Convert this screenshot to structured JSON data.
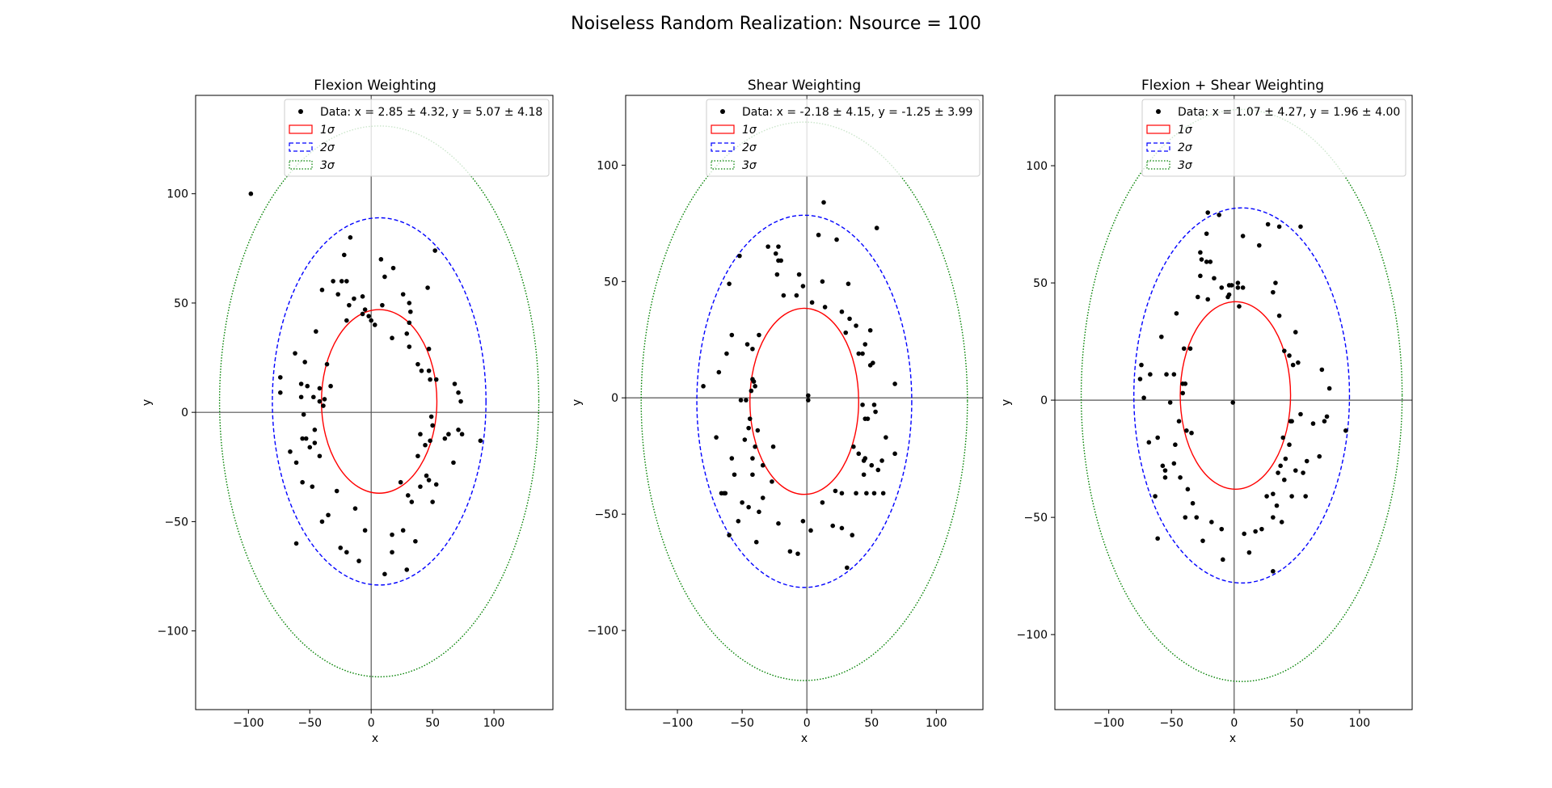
{
  "figure": {
    "title": "Noiseless Random Realization: Nsource = 100"
  },
  "chart_data": [
    {
      "type": "scatter",
      "title": "Flexion Weighting",
      "xlabel": "x",
      "ylabel": "y",
      "xlim": [
        -143,
        148
      ],
      "ylim": [
        -136,
        145
      ],
      "xticks": [
        -100,
        -50,
        0,
        50,
        100
      ],
      "yticks": [
        -100,
        -50,
        0,
        50,
        100
      ],
      "tick_labels_x": [
        "−100",
        "−50",
        "0",
        "50",
        "100"
      ],
      "tick_labels_y": [
        "−100",
        "−50",
        "0",
        "50",
        "100"
      ],
      "legend_position": "upper-right",
      "legend": {
        "data": "Data: x = 2.85 ± 4.32, y = 5.07 ± 4.18",
        "s1": "1σ",
        "s2": "2σ",
        "s3": "3σ"
      },
      "colors": {
        "points": "#000000",
        "s1": "#ff0000",
        "s2": "#0000ff",
        "s3": "#008000"
      },
      "ellipses": [
        {
          "level": 1,
          "cx": 6.5,
          "cy": 5,
          "rx": 47,
          "ry": 42
        },
        {
          "level": 2,
          "cx": 6.5,
          "cy": 5,
          "rx": 87,
          "ry": 84
        },
        {
          "level": 3,
          "cx": 6.5,
          "cy": 5,
          "rx": 130,
          "ry": 126
        }
      ],
      "points": [
        [
          -98,
          100
        ],
        [
          -17,
          80
        ],
        [
          -22,
          72
        ],
        [
          -20,
          60
        ],
        [
          -24,
          60
        ],
        [
          -31,
          60
        ],
        [
          -40,
          56
        ],
        [
          -14,
          52
        ],
        [
          -7,
          53
        ],
        [
          -5,
          47
        ],
        [
          -2,
          44
        ],
        [
          0,
          42
        ],
        [
          -18,
          49
        ],
        [
          -27,
          54
        ],
        [
          -20,
          42
        ],
        [
          -7,
          45
        ],
        [
          3,
          40
        ],
        [
          8,
          70
        ],
        [
          11,
          62
        ],
        [
          18,
          66
        ],
        [
          9,
          49
        ],
        [
          17,
          34
        ],
        [
          26,
          54
        ],
        [
          29,
          36
        ],
        [
          31,
          41
        ],
        [
          31,
          50
        ],
        [
          32,
          46
        ],
        [
          31,
          30
        ],
        [
          46,
          57
        ],
        [
          52,
          74
        ],
        [
          47,
          29
        ],
        [
          48,
          15
        ],
        [
          53,
          15
        ],
        [
          47,
          19
        ],
        [
          41,
          19
        ],
        [
          38,
          22
        ],
        [
          -36,
          22
        ],
        [
          -33,
          12
        ],
        [
          -38,
          6
        ],
        [
          -39,
          3
        ],
        [
          -42,
          5
        ],
        [
          -42,
          11
        ],
        [
          -47,
          7
        ],
        [
          -52,
          12
        ],
        [
          -54,
          23
        ],
        [
          -57,
          13
        ],
        [
          -57,
          7
        ],
        [
          -62,
          27
        ],
        [
          -74,
          16
        ],
        [
          -74,
          9
        ],
        [
          -45,
          37
        ],
        [
          -46,
          -8
        ],
        [
          -46,
          -14
        ],
        [
          -42,
          -20
        ],
        [
          -55,
          -1
        ],
        [
          -53,
          -12
        ],
        [
          -50,
          -16
        ],
        [
          -61,
          -23
        ],
        [
          -66,
          -18
        ],
        [
          -56,
          -32
        ],
        [
          -48,
          -34
        ],
        [
          -40,
          -50
        ],
        [
          -35,
          -47
        ],
        [
          -28,
          -36
        ],
        [
          -61,
          -60
        ],
        [
          -25,
          -62
        ],
        [
          -20,
          -64
        ],
        [
          -13,
          -44
        ],
        [
          -10,
          -68
        ],
        [
          -5,
          -54
        ],
        [
          11,
          -74
        ],
        [
          17,
          -56
        ],
        [
          17,
          -64
        ],
        [
          26,
          -54
        ],
        [
          29,
          -72
        ],
        [
          30,
          -38
        ],
        [
          33,
          -41
        ],
        [
          36,
          -59
        ],
        [
          38,
          -20
        ],
        [
          40,
          -34
        ],
        [
          40,
          -10
        ],
        [
          44,
          -15
        ],
        [
          49,
          -2
        ],
        [
          48,
          -13
        ],
        [
          45,
          -29
        ],
        [
          47,
          -31
        ],
        [
          50,
          -41
        ],
        [
          53,
          -33
        ],
        [
          67,
          -23
        ],
        [
          63,
          -10
        ],
        [
          60,
          -12
        ],
        [
          74,
          -10
        ],
        [
          71,
          -8
        ],
        [
          89,
          -13
        ],
        [
          68,
          13
        ],
        [
          71,
          9
        ],
        [
          73,
          5
        ],
        [
          50,
          -6
        ],
        [
          24,
          -32
        ],
        [
          -56,
          -12
        ]
      ]
    },
    {
      "type": "scatter",
      "title": "Shear Weighting",
      "xlabel": "x",
      "ylabel": "y",
      "xlim": [
        -140,
        136
      ],
      "ylim": [
        -134,
        130
      ],
      "xticks": [
        -100,
        -50,
        0,
        50,
        100
      ],
      "yticks": [
        -100,
        -50,
        0,
        50,
        100
      ],
      "tick_labels_x": [
        "−100",
        "−50",
        "0",
        "50",
        "100"
      ],
      "tick_labels_y": [
        "−100",
        "−50",
        "0",
        "50",
        "100"
      ],
      "legend_position": "upper-right",
      "legend": {
        "data": "Data: x = -2.18 ± 4.15, y = -1.25 ± 3.99",
        "s1": "1σ",
        "s2": "2σ",
        "s3": "3σ"
      },
      "colors": {
        "points": "#000000",
        "s1": "#ff0000",
        "s2": "#0000ff",
        "s3": "#008000"
      },
      "ellipses": [
        {
          "level": 1,
          "cx": -2,
          "cy": -1.5,
          "rx": 42,
          "ry": 40
        },
        {
          "level": 2,
          "cx": -2,
          "cy": -1.5,
          "rx": 83,
          "ry": 80
        },
        {
          "level": 3,
          "cx": -2,
          "cy": -1.5,
          "rx": 126,
          "ry": 120
        }
      ],
      "points": [
        [
          -52,
          61
        ],
        [
          -30,
          65
        ],
        [
          -22,
          65
        ],
        [
          -24,
          62
        ],
        [
          -22,
          59
        ],
        [
          -20,
          59
        ],
        [
          -23,
          53
        ],
        [
          -6,
          53
        ],
        [
          -18,
          44
        ],
        [
          13,
          84
        ],
        [
          9,
          70
        ],
        [
          23,
          68
        ],
        [
          54,
          73
        ],
        [
          32,
          49
        ],
        [
          12,
          50
        ],
        [
          -60,
          49
        ],
        [
          -68,
          11
        ],
        [
          -80,
          5
        ],
        [
          -46,
          23
        ],
        [
          -37,
          27
        ],
        [
          -42,
          21
        ],
        [
          -42,
          8
        ],
        [
          -41,
          7
        ],
        [
          -40,
          5
        ],
        [
          -43,
          3
        ],
        [
          -47,
          -1
        ],
        [
          -51,
          -1
        ],
        [
          -58,
          27
        ],
        [
          -62,
          19
        ],
        [
          -3,
          48
        ],
        [
          4,
          41
        ],
        [
          -8,
          44
        ],
        [
          14,
          39
        ],
        [
          27,
          37
        ],
        [
          38,
          31
        ],
        [
          30,
          28
        ],
        [
          33,
          34
        ],
        [
          40,
          19
        ],
        [
          43,
          19
        ],
        [
          45,
          23
        ],
        [
          49,
          14
        ],
        [
          51,
          15
        ],
        [
          49,
          29
        ],
        [
          68,
          6
        ],
        [
          53,
          -6
        ],
        [
          47,
          -9
        ],
        [
          45,
          -9
        ],
        [
          43,
          -3
        ],
        [
          52,
          -3
        ],
        [
          -44,
          -9
        ],
        [
          -45,
          -13
        ],
        [
          -48,
          -18
        ],
        [
          -58,
          -26
        ],
        [
          -66,
          -41
        ],
        [
          -63,
          -41
        ],
        [
          -70,
          -17
        ],
        [
          -42,
          -33
        ],
        [
          -34,
          -29
        ],
        [
          -27,
          -36
        ],
        [
          -34,
          -43
        ],
        [
          -50,
          -45
        ],
        [
          -45,
          -47
        ],
        [
          -53,
          -53
        ],
        [
          -60,
          -59
        ],
        [
          -39,
          -62
        ],
        [
          -37,
          -49
        ],
        [
          -22,
          -54
        ],
        [
          -13,
          -66
        ],
        [
          -7,
          -67
        ],
        [
          -3,
          -53
        ],
        [
          3,
          -57
        ],
        [
          12,
          -45
        ],
        [
          20,
          -55
        ],
        [
          27,
          -56
        ],
        [
          31,
          -73
        ],
        [
          35,
          -59
        ],
        [
          40,
          -24
        ],
        [
          38,
          -41
        ],
        [
          45,
          -26
        ],
        [
          46,
          -41
        ],
        [
          44,
          -33
        ],
        [
          50,
          -29
        ],
        [
          52,
          -41
        ],
        [
          61,
          -17
        ],
        [
          58,
          -27
        ],
        [
          55,
          -31
        ],
        [
          59,
          -41
        ],
        [
          68,
          -24
        ],
        [
          22,
          -40
        ],
        [
          27,
          -41
        ],
        [
          1,
          1
        ],
        [
          1,
          -1
        ],
        [
          -64,
          -41
        ],
        [
          -56,
          -33
        ],
        [
          -42,
          -26
        ],
        [
          -40,
          -21
        ],
        [
          -38,
          -14
        ],
        [
          -26,
          -21
        ],
        [
          44,
          -27
        ],
        [
          36,
          -21
        ]
      ]
    },
    {
      "type": "scatter",
      "title": "Flexion + Shear Weighting",
      "xlabel": "x",
      "ylabel": "y",
      "xlim": [
        -143,
        142
      ],
      "ylim": [
        -132,
        130
      ],
      "xticks": [
        -100,
        -50,
        0,
        50,
        100
      ],
      "yticks": [
        -100,
        -50,
        0,
        50,
        100
      ],
      "tick_labels_x": [
        "−100",
        "−50",
        "0",
        "50",
        "100"
      ],
      "tick_labels_y": [
        "−100",
        "−50",
        "0",
        "50",
        "100"
      ],
      "legend_position": "upper-right",
      "legend": {
        "data": "Data: x = 1.07 ± 4.27, y = 1.96 ± 4.00",
        "s1": "1σ",
        "s2": "2σ",
        "s3": "3σ"
      },
      "colors": {
        "points": "#000000",
        "s1": "#ff0000",
        "s2": "#0000ff",
        "s3": "#008000"
      },
      "ellipses": [
        {
          "level": 1,
          "cx": 1,
          "cy": 2,
          "rx": 44,
          "ry": 40
        },
        {
          "level": 2,
          "cx": 6,
          "cy": 2,
          "rx": 86,
          "ry": 80
        },
        {
          "level": 3,
          "cx": 6,
          "cy": 2,
          "rx": 128,
          "ry": 122
        }
      ],
      "points": [
        [
          -21,
          80
        ],
        [
          -12,
          79
        ],
        [
          -22,
          71
        ],
        [
          -27,
          63
        ],
        [
          -26,
          60
        ],
        [
          -22,
          59
        ],
        [
          -19,
          59
        ],
        [
          -27,
          53
        ],
        [
          -16,
          52
        ],
        [
          -10,
          48
        ],
        [
          -4,
          45
        ],
        [
          -4,
          49
        ],
        [
          -2,
          49
        ],
        [
          -5,
          44
        ],
        [
          -21,
          43
        ],
        [
          -29,
          44
        ],
        [
          4,
          40
        ],
        [
          3,
          48
        ],
        [
          3,
          50
        ],
        [
          7,
          48
        ],
        [
          7,
          70
        ],
        [
          20,
          66
        ],
        [
          27,
          75
        ],
        [
          36,
          74
        ],
        [
          53,
          74
        ],
        [
          33,
          50
        ],
        [
          31,
          46
        ],
        [
          36,
          36
        ],
        [
          40,
          21
        ],
        [
          44,
          19
        ],
        [
          47,
          15
        ],
        [
          51,
          16
        ],
        [
          49,
          29
        ],
        [
          70,
          13
        ],
        [
          76,
          5
        ],
        [
          53,
          -6
        ],
        [
          46,
          -9
        ],
        [
          45,
          -9
        ],
        [
          -40,
          22
        ],
        [
          -39,
          7
        ],
        [
          -41,
          7
        ],
        [
          -41,
          3
        ],
        [
          -48,
          11
        ],
        [
          -51,
          -1
        ],
        [
          -54,
          11
        ],
        [
          -58,
          27
        ],
        [
          -67,
          11
        ],
        [
          -74,
          15
        ],
        [
          -75,
          9
        ],
        [
          -72,
          1
        ],
        [
          -68,
          -18
        ],
        [
          -47,
          -19
        ],
        [
          -44,
          -9
        ],
        [
          -38,
          -13
        ],
        [
          -43,
          -33
        ],
        [
          -37,
          -38
        ],
        [
          -57,
          -28
        ],
        [
          -63,
          -41
        ],
        [
          -55,
          -30
        ],
        [
          -55,
          -33
        ],
        [
          -33,
          -44
        ],
        [
          -30,
          -50
        ],
        [
          -39,
          -50
        ],
        [
          -25,
          -60
        ],
        [
          -18,
          -52
        ],
        [
          -10,
          -55
        ],
        [
          -9,
          -68
        ],
        [
          -1,
          -1
        ],
        [
          8,
          -57
        ],
        [
          12,
          -65
        ],
        [
          17,
          -56
        ],
        [
          22,
          -55
        ],
        [
          26,
          -41
        ],
        [
          31,
          -40
        ],
        [
          34,
          -45
        ],
        [
          38,
          -52
        ],
        [
          37,
          -28
        ],
        [
          41,
          -25
        ],
        [
          44,
          -19
        ],
        [
          31,
          -73
        ],
        [
          46,
          -41
        ],
        [
          49,
          -30
        ],
        [
          55,
          -31
        ],
        [
          58,
          -26
        ],
        [
          57,
          -41
        ],
        [
          68,
          -24
        ],
        [
          72,
          -9
        ],
        [
          74,
          -7
        ],
        [
          89,
          -13
        ],
        [
          63,
          -10
        ],
        [
          -61,
          -59
        ],
        [
          35,
          -31
        ],
        [
          40,
          -34
        ],
        [
          39,
          -16
        ],
        [
          -46,
          37
        ],
        [
          31,
          -50
        ],
        [
          -48,
          -27
        ],
        [
          -35,
          22
        ],
        [
          -34,
          -14
        ],
        [
          -61,
          -16
        ]
      ]
    }
  ]
}
